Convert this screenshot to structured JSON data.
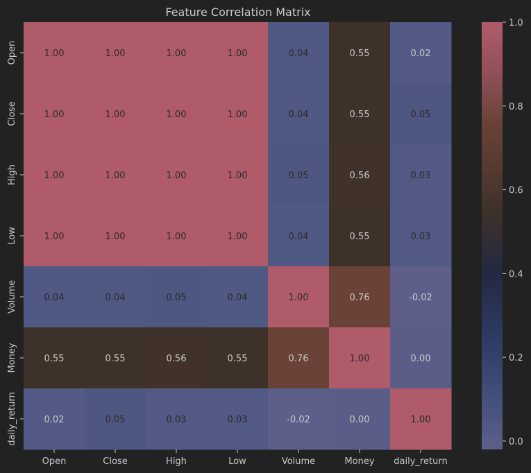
{
  "chart_data": {
    "type": "heatmap",
    "title": "Feature Correlation Matrix",
    "xlabel": "",
    "ylabel": "",
    "x_categories": [
      "Open",
      "Close",
      "High",
      "Low",
      "Volume",
      "Money",
      "daily_return"
    ],
    "y_categories": [
      "Open",
      "Close",
      "High",
      "Low",
      "Volume",
      "Money",
      "daily_return"
    ],
    "values": [
      [
        1.0,
        1.0,
        1.0,
        1.0,
        0.04,
        0.55,
        0.02
      ],
      [
        1.0,
        1.0,
        1.0,
        1.0,
        0.04,
        0.55,
        0.05
      ],
      [
        1.0,
        1.0,
        1.0,
        1.0,
        0.05,
        0.56,
        0.03
      ],
      [
        1.0,
        1.0,
        1.0,
        1.0,
        0.04,
        0.55,
        0.03
      ],
      [
        0.04,
        0.04,
        0.05,
        0.04,
        1.0,
        0.76,
        -0.02
      ],
      [
        0.55,
        0.55,
        0.56,
        0.55,
        0.76,
        1.0,
        0.0
      ],
      [
        0.02,
        0.05,
        0.03,
        0.03,
        -0.02,
        0.0,
        1.0
      ]
    ],
    "annotation_format": "0.00",
    "colorbar": {
      "range": [
        -0.02,
        1.0
      ],
      "ticks": [
        0.0,
        0.2,
        0.4,
        0.6,
        0.8,
        1.0
      ],
      "tick_labels": [
        "0.0",
        "0.2",
        "0.4",
        "0.6",
        "0.8",
        "1.0"
      ]
    },
    "colormap": [
      {
        "v": -0.02,
        "color": "#5d5f8a"
      },
      {
        "v": 0.1,
        "color": "#43507d"
      },
      {
        "v": 0.25,
        "color": "#2d3a62"
      },
      {
        "v": 0.4,
        "color": "#232942"
      },
      {
        "v": 0.55,
        "color": "#3e3129"
      },
      {
        "v": 0.65,
        "color": "#553a30"
      },
      {
        "v": 0.76,
        "color": "#6a4237"
      },
      {
        "v": 0.88,
        "color": "#915059"
      },
      {
        "v": 1.0,
        "color": "#b05b6a"
      }
    ],
    "grid": false
  },
  "colors": {
    "background": "#222222",
    "text": "#c8c8c8",
    "annotation_dark": "#2b2b2b",
    "annotation_light": "#c8c8c8"
  }
}
